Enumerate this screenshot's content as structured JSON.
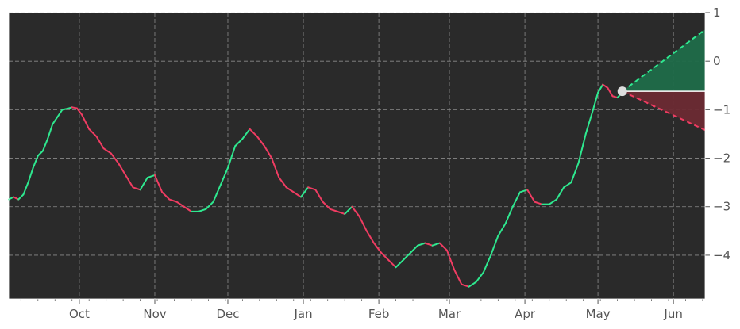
{
  "chart_data": {
    "type": "line",
    "title": "",
    "xlabel": "",
    "ylabel": "",
    "ylim": [
      -4.9,
      1.0
    ],
    "y_ticks": [
      1,
      0,
      -1,
      -2,
      -3,
      -4
    ],
    "y_tick_labels": [
      "1",
      "0",
      "−1",
      "−2",
      "−3",
      "−4"
    ],
    "x_ticks": [
      "2023-10-01",
      "2023-11-01",
      "2023-12-01",
      "2024-01-01",
      "2024-02-01",
      "2024-03-01",
      "2024-04-01",
      "2024-05-01",
      "2024-06-01"
    ],
    "x_tick_labels": [
      "Oct",
      "Nov",
      "Dec",
      "Jan",
      "Feb",
      "Mar",
      "Apr",
      "May",
      "Jun"
    ],
    "xlim": [
      "2023-09-02",
      "2024-06-14"
    ],
    "grid": true,
    "y_axis_side": "right",
    "colors": {
      "background": "#2a2a2a",
      "up": "#2ee88f",
      "down": "#f03c62",
      "grid": "#8a8a8a",
      "marker": "#dddddd",
      "forecast_up_fill": "#1f6b49",
      "forecast_down_fill": "#6b2a33",
      "current_line": "#ffffff"
    },
    "series": [
      {
        "x": [
          "2023-09-02",
          "2023-09-04",
          "2023-09-06",
          "2023-09-08",
          "2023-09-10",
          "2023-09-12",
          "2023-09-14",
          "2023-09-16",
          "2023-09-18",
          "2023-09-20",
          "2023-09-22",
          "2023-09-24",
          "2023-09-26",
          "2023-09-28",
          "2023-09-30",
          "2023-10-02",
          "2023-10-05",
          "2023-10-08",
          "2023-10-11",
          "2023-10-14",
          "2023-10-17",
          "2023-10-20",
          "2023-10-23",
          "2023-10-26",
          "2023-10-29",
          "2023-11-01",
          "2023-11-04",
          "2023-11-07",
          "2023-11-10",
          "2023-11-13",
          "2023-11-16",
          "2023-11-19",
          "2023-11-22",
          "2023-11-25",
          "2023-11-28",
          "2023-12-01",
          "2023-12-04",
          "2023-12-07",
          "2023-12-10",
          "2023-12-13",
          "2023-12-16",
          "2023-12-19",
          "2023-12-22",
          "2023-12-25",
          "2023-12-28",
          "2023-12-31",
          "2024-01-03",
          "2024-01-06",
          "2024-01-09",
          "2024-01-12",
          "2024-01-15",
          "2024-01-18",
          "2024-01-21",
          "2024-01-24",
          "2024-01-27",
          "2024-01-30",
          "2024-02-02",
          "2024-02-05",
          "2024-02-08",
          "2024-02-11",
          "2024-02-14",
          "2024-02-17",
          "2024-02-20",
          "2024-02-23",
          "2024-02-26",
          "2024-02-29",
          "2024-03-03",
          "2024-03-06",
          "2024-03-09",
          "2024-03-12",
          "2024-03-15",
          "2024-03-18",
          "2024-03-21",
          "2024-03-24",
          "2024-03-27",
          "2024-03-30",
          "2024-04-02",
          "2024-04-05",
          "2024-04-08",
          "2024-04-11",
          "2024-04-14",
          "2024-04-17",
          "2024-04-20",
          "2024-04-23",
          "2024-04-26",
          "2024-04-29",
          "2024-05-01",
          "2024-05-03",
          "2024-05-05",
          "2024-05-07",
          "2024-05-09",
          "2024-05-11"
        ],
        "y": [
          -2.85,
          -2.8,
          -2.85,
          -2.75,
          -2.5,
          -2.2,
          -1.95,
          -1.85,
          -1.6,
          -1.3,
          -1.15,
          -1.0,
          -0.98,
          -0.95,
          -0.97,
          -1.1,
          -1.4,
          -1.55,
          -1.8,
          -1.9,
          -2.1,
          -2.35,
          -2.6,
          -2.65,
          -2.4,
          -2.35,
          -2.7,
          -2.85,
          -2.9,
          -3.0,
          -3.1,
          -3.1,
          -3.05,
          -2.9,
          -2.55,
          -2.2,
          -1.75,
          -1.6,
          -1.4,
          -1.55,
          -1.75,
          -2.0,
          -2.4,
          -2.6,
          -2.7,
          -2.8,
          -2.6,
          -2.65,
          -2.9,
          -3.05,
          -3.1,
          -3.15,
          -3.0,
          -3.2,
          -3.5,
          -3.75,
          -3.95,
          -4.1,
          -4.25,
          -4.1,
          -3.95,
          -3.8,
          -3.75,
          -3.8,
          -3.75,
          -3.9,
          -4.3,
          -4.6,
          -4.65,
          -4.55,
          -4.35,
          -4.0,
          -3.6,
          -3.35,
          -3.0,
          -2.7,
          -2.65,
          -2.9,
          -2.95,
          -2.95,
          -2.85,
          -2.6,
          -2.5,
          -2.1,
          -1.5,
          -1.0,
          -0.65,
          -0.48,
          -0.55,
          -0.72,
          -0.75,
          -0.65
        ]
      }
    ],
    "forecast": {
      "start": {
        "x": "2024-05-11",
        "y": -0.62
      },
      "end_x": "2024-06-14",
      "upper_end_y": 0.65,
      "lower_end_y": -1.42
    }
  }
}
